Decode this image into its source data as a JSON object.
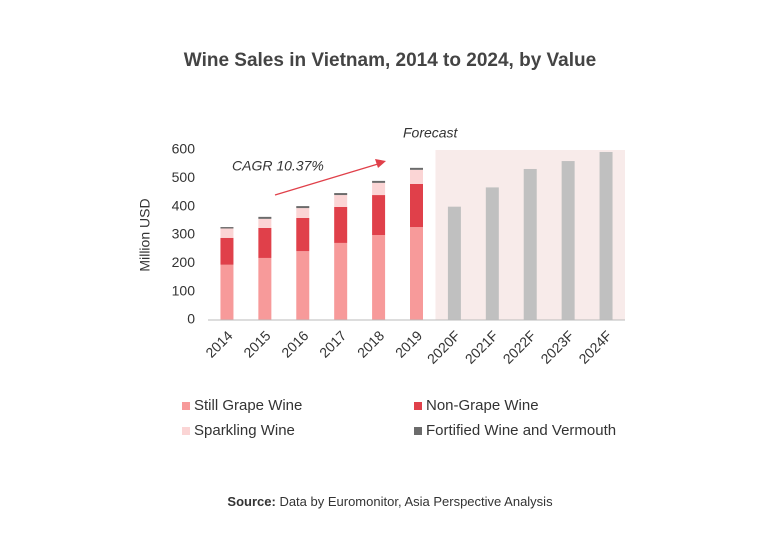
{
  "chart_data": {
    "type": "bar",
    "stacked": true,
    "title": "Wine Sales in Vietnam, 2014 to 2024, by Value",
    "y_label": "Million USD",
    "categories": [
      "2014",
      "2015",
      "2016",
      "2017",
      "2018",
      "2019",
      "2020F",
      "2021F",
      "2022F",
      "2023F",
      "2024F"
    ],
    "series": [
      {
        "name": "Still Grape Wine",
        "color": "#f79a9a",
        "values": [
          195,
          219,
          243,
          272,
          300,
          328,
          null,
          null,
          null,
          null,
          null
        ]
      },
      {
        "name": "Non-Grape Wine",
        "color": "#e0404a",
        "values": [
          95,
          106,
          117,
          127,
          141,
          152,
          null,
          null,
          null,
          null,
          null
        ]
      },
      {
        "name": "Sparkling Wine",
        "color": "#fbd5d5",
        "values": [
          33,
          32,
          35,
          42,
          43,
          50,
          null,
          null,
          null,
          null,
          null
        ]
      },
      {
        "name": "Fortified Wine and Vermouth",
        "color": "#6b6b6b",
        "values": [
          5,
          7,
          7,
          7,
          7,
          7,
          null,
          null,
          null,
          null,
          null
        ]
      }
    ],
    "forecast": {
      "label": "Forecast",
      "color": "#c0c0c0",
      "shade": "#f8ebea",
      "values": [
        null,
        null,
        null,
        null,
        null,
        null,
        400,
        468,
        533,
        561,
        593
      ]
    },
    "annotation": "CAGR 10.37%",
    "ylim": [
      0,
      600
    ],
    "yticks": [
      0,
      100,
      200,
      300,
      400,
      500,
      600
    ],
    "grid": false,
    "source": {
      "label": "Source:",
      "text": "Data by Euromonitor, Asia Perspective Analysis"
    }
  }
}
